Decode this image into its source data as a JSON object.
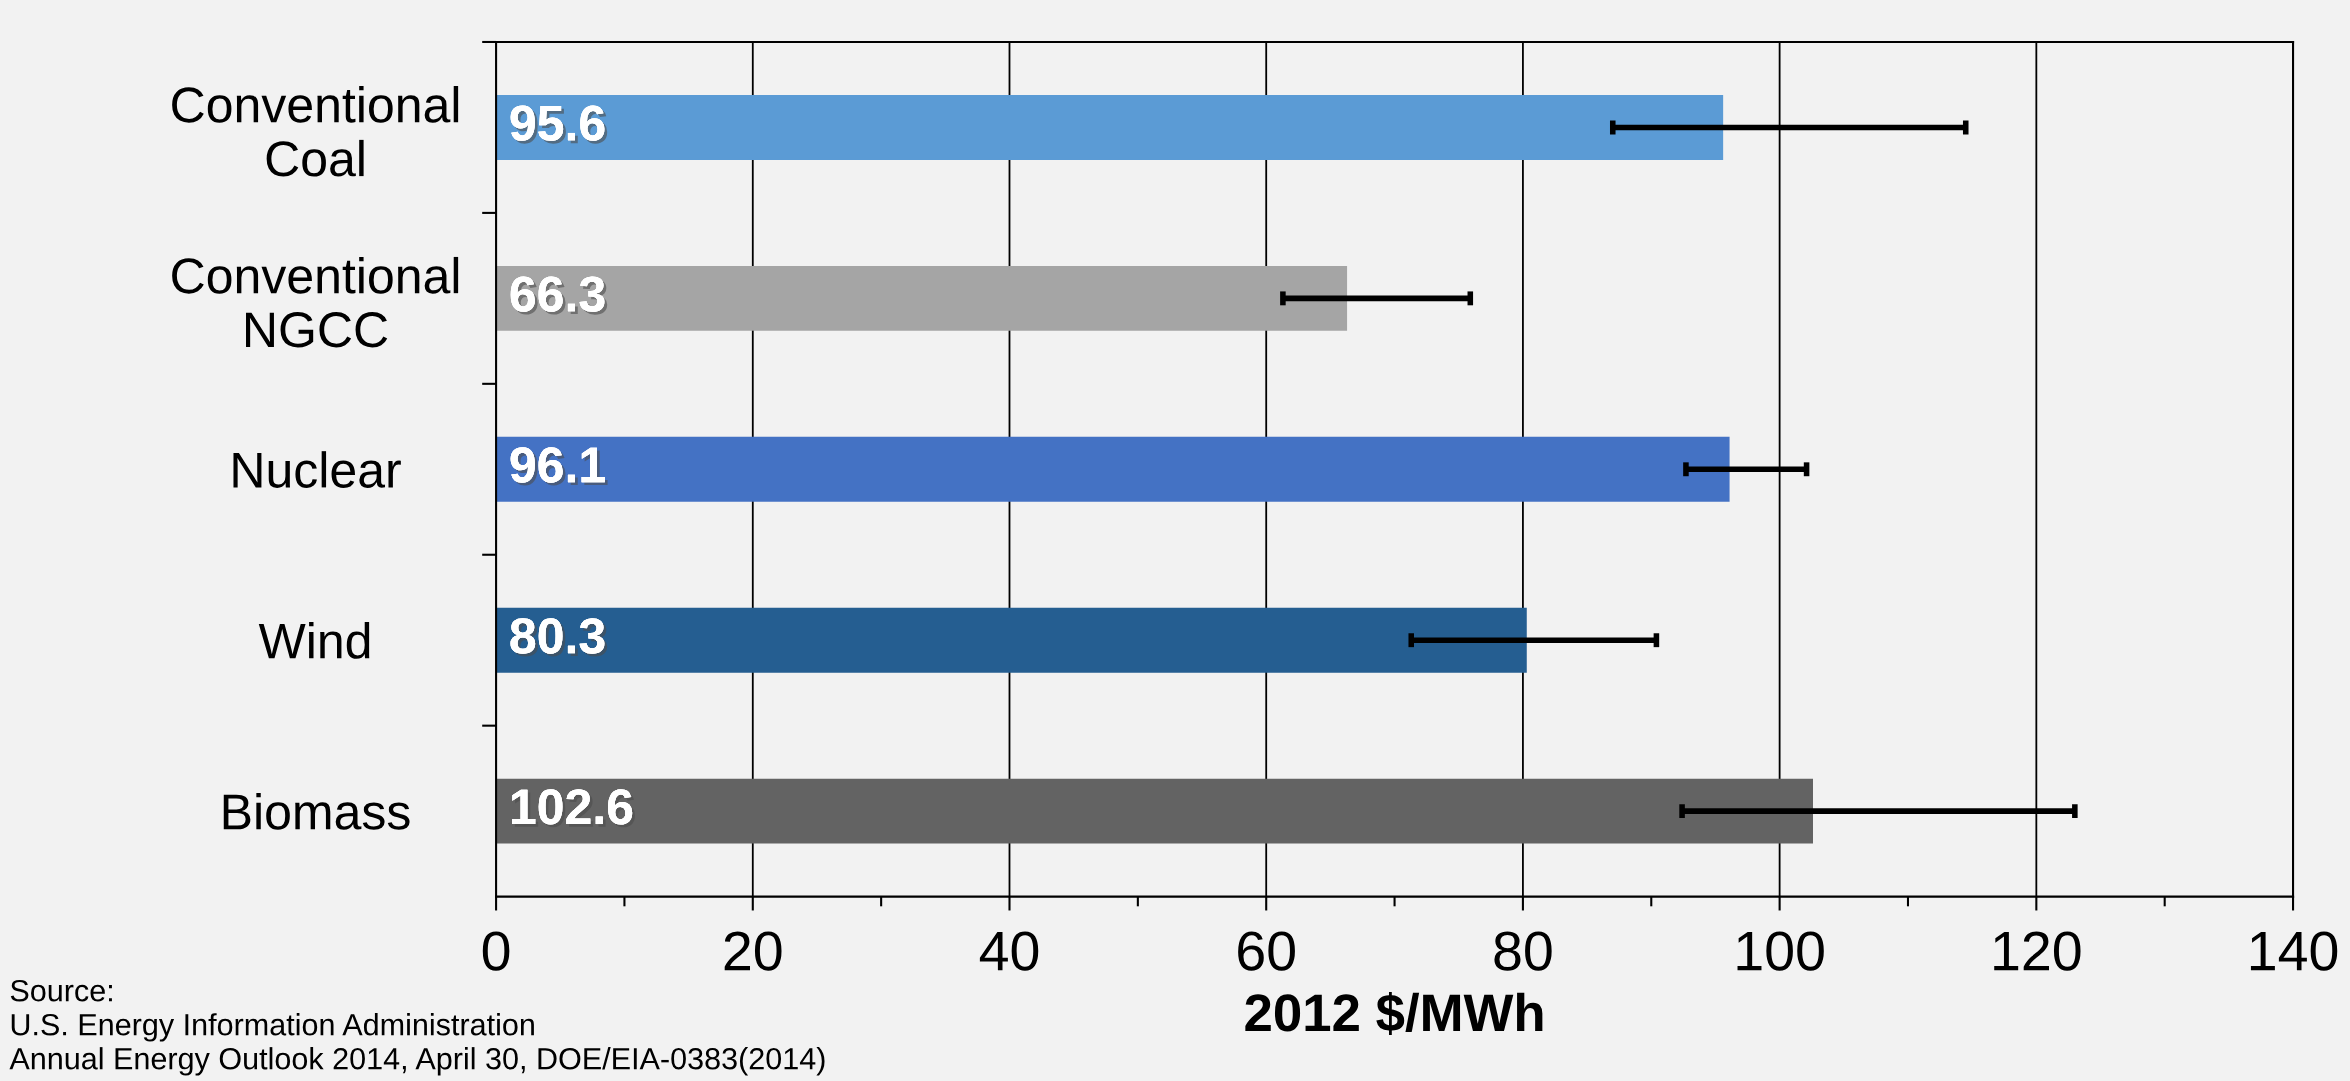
{
  "chart_data": {
    "type": "bar",
    "orientation": "horizontal",
    "categories": [
      "Conventional\nCoal",
      "Conventional\nNGCC",
      "Nuclear",
      "Wind",
      "Biomass"
    ],
    "values": [
      95.6,
      66.3,
      96.1,
      80.3,
      102.6
    ],
    "colors": [
      "#5b9bd5",
      "#a5a5a5",
      "#4472c4",
      "#255e91",
      "#636363"
    ],
    "errors": [
      [
        87.0,
        114.5
      ],
      [
        61.3,
        75.9
      ],
      [
        92.7,
        102.1
      ],
      [
        71.3,
        90.4
      ],
      [
        92.4,
        123.0
      ]
    ],
    "data_labels": true,
    "xlabel": "2012 $/MWh",
    "xlim": [
      0,
      140
    ],
    "xticks": [
      0,
      {
        "value": 10,
        "label": null
      },
      20,
      {
        "value": 30,
        "label": null
      },
      40,
      {
        "value": 50,
        "label": null
      },
      60,
      {
        "value": 70,
        "label": null
      },
      80,
      {
        "value": 90,
        "label": null
      },
      100,
      {
        "value": 110,
        "label": null
      },
      120,
      {
        "value": 130,
        "label": null
      },
      140
    ],
    "grid": "x",
    "annotations": [
      "Source:\nU.S. Energy Information Administration\nAnnual Energy Outlook 2014, April 30, DOE/EIA-0383(2014)"
    ]
  }
}
